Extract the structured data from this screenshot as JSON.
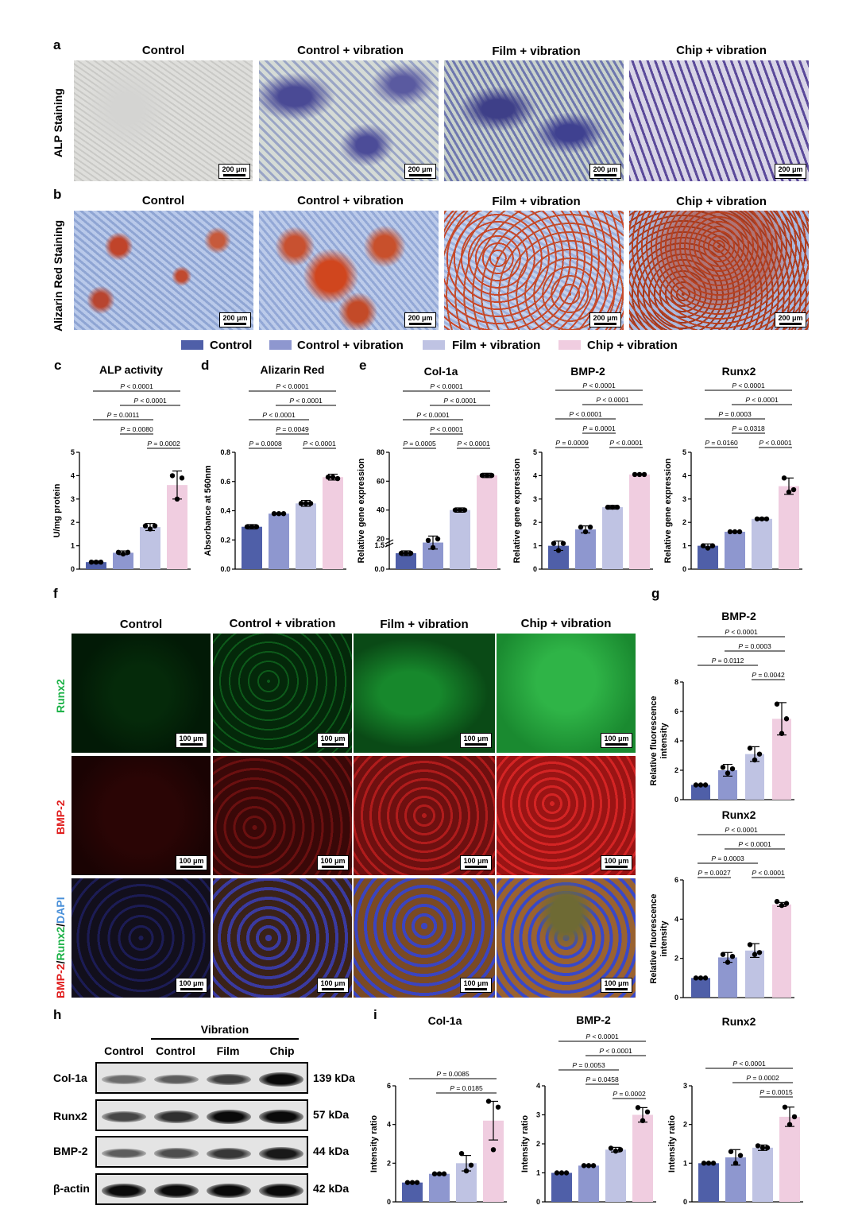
{
  "panels": {
    "a": "a",
    "b": "b",
    "c": "c",
    "d": "d",
    "e": "e",
    "f": "f",
    "g": "g",
    "h": "h",
    "i": "i"
  },
  "groups": [
    "Control",
    "Control + vibration",
    "Film + vibration",
    "Chip + vibration"
  ],
  "row_labels": {
    "alp": "ALP Staining",
    "alizarin": "Alizarin Red Staining",
    "runx2": "Runx2",
    "bmp2": "BMP-2",
    "merge_bmp2": "BMP-2",
    "merge_slash1": "/",
    "merge_runx2": "Runx2",
    "merge_slash2": "/",
    "merge_dapi": "DAPI"
  },
  "scale_200": "200 μm",
  "scale_100": "100 μm",
  "colors": {
    "control": "#4f5fa8",
    "control_vib": "#8e97cf",
    "film_vib": "#bfc3e3",
    "chip_vib": "#f0cde0",
    "runx2_green": "#1fb34a",
    "bmp2_red": "#e02020",
    "dapi_blue": "#4a90d9"
  },
  "charts": {
    "alp": {
      "title": "ALP activity",
      "ylabel": "U/mg protein",
      "yticks": [
        "0",
        "1",
        "2",
        "3",
        "4",
        "5"
      ],
      "ymax": 5,
      "values": [
        0.3,
        0.7,
        1.8,
        3.6
      ],
      "err": [
        0.05,
        0.08,
        0.15,
        0.6
      ],
      "pts": [
        [
          0.3,
          0.3,
          0.3
        ],
        [
          0.72,
          0.65,
          0.72
        ],
        [
          1.85,
          1.72,
          1.85
        ],
        [
          4.0,
          3.0,
          3.9
        ]
      ],
      "sig": [
        {
          "text": "P < 0.0001",
          "a": 0,
          "b": 3
        },
        {
          "text": "P < 0.0001",
          "a": 1,
          "b": 3
        },
        {
          "text": "P = 0.0011",
          "a": 0,
          "b": 2
        },
        {
          "text": "P = 0.0080",
          "a": 1,
          "b": 2
        },
        {
          "text": "P = 0.0002",
          "a": 2,
          "b": 3
        }
      ]
    },
    "alizarin": {
      "title": "Alizarin Red",
      "ylabel": "Absorbance at 560nm",
      "yticks": [
        "0.0",
        "0.2",
        "0.4",
        "0.6",
        "0.8"
      ],
      "ymax": 0.8,
      "values": [
        0.29,
        0.38,
        0.45,
        0.63
      ],
      "err": [
        0.015,
        0.005,
        0.02,
        0.02
      ],
      "pts": [
        [
          0.29,
          0.29,
          0.29
        ],
        [
          0.38,
          0.38,
          0.38
        ],
        [
          0.45,
          0.45,
          0.45
        ],
        [
          0.63,
          0.63,
          0.62
        ]
      ],
      "sig": [
        {
          "text": "P < 0.0001",
          "a": 0,
          "b": 3
        },
        {
          "text": "P < 0.0001",
          "a": 1,
          "b": 3
        },
        {
          "text": "P < 0.0001",
          "a": 0,
          "b": 2
        },
        {
          "text": "P = 0.0049",
          "a": 1,
          "b": 2
        },
        {
          "text": "P = 0.0008",
          "a": 0,
          "b": 1
        },
        {
          "text": "P < 0.0001",
          "a": 2,
          "b": 3
        }
      ]
    },
    "col1a": {
      "title": "Col-1a",
      "ylabel": "Relative gene expression",
      "yticks": [
        "0.0",
        "1.5",
        "20",
        "40",
        "60",
        "80"
      ],
      "broken": true,
      "values": [
        1.0,
        17.5,
        40,
        64
      ],
      "err": [
        0.15,
        4.5,
        1.5,
        1.5
      ],
      "pts": [
        [
          1.0,
          1.0,
          1.0
        ],
        [
          19,
          14,
          20
        ],
        [
          40,
          40,
          40
        ],
        [
          64,
          64,
          64
        ]
      ],
      "sig": [
        {
          "text": "P < 0.0001",
          "a": 0,
          "b": 3
        },
        {
          "text": "P < 0.0001",
          "a": 1,
          "b": 3
        },
        {
          "text": "P < 0.0001",
          "a": 0,
          "b": 2
        },
        {
          "text": "P < 0.0001",
          "a": 1,
          "b": 2
        },
        {
          "text": "P = 0.0005",
          "a": 0,
          "b": 1
        },
        {
          "text": "P < 0.0001",
          "a": 2,
          "b": 3
        }
      ]
    },
    "bmp2_gene": {
      "title": "BMP-2",
      "ylabel": "Relative gene expression",
      "yticks": [
        "0",
        "1",
        "2",
        "3",
        "4",
        "5"
      ],
      "ymax": 5,
      "values": [
        1.0,
        1.7,
        2.65,
        4.05
      ],
      "err": [
        0.2,
        0.15,
        0.08,
        0.03
      ],
      "pts": [
        [
          1.1,
          0.8,
          1.1
        ],
        [
          1.8,
          1.6,
          1.8
        ],
        [
          2.65,
          2.65,
          2.65
        ],
        [
          4.05,
          4.05,
          4.05
        ]
      ],
      "sig": [
        {
          "text": "P < 0.0001",
          "a": 0,
          "b": 3
        },
        {
          "text": "P < 0.0001",
          "a": 1,
          "b": 3
        },
        {
          "text": "P < 0.0001",
          "a": 0,
          "b": 2
        },
        {
          "text": "P = 0.0001",
          "a": 1,
          "b": 2
        },
        {
          "text": "P = 0.0009",
          "a": 0,
          "b": 1
        },
        {
          "text": "P < 0.0001",
          "a": 2,
          "b": 3
        }
      ]
    },
    "runx2_gene": {
      "title": "Runx2",
      "ylabel": "Relative gene expression",
      "yticks": [
        "0",
        "1",
        "2",
        "3",
        "4",
        "5"
      ],
      "ymax": 5,
      "values": [
        1.0,
        1.6,
        2.15,
        3.55
      ],
      "err": [
        0.08,
        0.03,
        0.05,
        0.35
      ],
      "pts": [
        [
          1.0,
          0.9,
          1.0
        ],
        [
          1.6,
          1.6,
          1.6
        ],
        [
          2.15,
          2.15,
          2.15
        ],
        [
          3.9,
          3.3,
          3.4
        ]
      ],
      "sig": [
        {
          "text": "P < 0.0001",
          "a": 0,
          "b": 3
        },
        {
          "text": "P < 0.0001",
          "a": 1,
          "b": 3
        },
        {
          "text": "P = 0.0003",
          "a": 0,
          "b": 2
        },
        {
          "text": "P = 0.0318",
          "a": 1,
          "b": 2
        },
        {
          "text": "P = 0.0160",
          "a": 0,
          "b": 1
        },
        {
          "text": "P < 0.0001",
          "a": 2,
          "b": 3
        }
      ]
    },
    "bmp2_fl": {
      "title": "BMP-2",
      "ylabel": "Relative fluorescence intensity",
      "yticks": [
        "0",
        "2",
        "4",
        "6",
        "8"
      ],
      "ymax": 8,
      "values": [
        1.0,
        2.0,
        3.1,
        5.5
      ],
      "err": [
        0.02,
        0.4,
        0.5,
        1.1
      ],
      "pts": [
        [
          1.0,
          1.0,
          1.0
        ],
        [
          2.2,
          1.8,
          2.1
        ],
        [
          3.5,
          2.7,
          3.1
        ],
        [
          6.5,
          4.5,
          5.5
        ]
      ],
      "sig": [
        {
          "text": "P < 0.0001",
          "a": 0,
          "b": 3
        },
        {
          "text": "P = 0.0003",
          "a": 1,
          "b": 3
        },
        {
          "text": "P = 0.0112",
          "a": 0,
          "b": 2
        },
        {
          "text": "P = 0.0042",
          "a": 2,
          "b": 3
        }
      ]
    },
    "runx2_fl": {
      "title": "Runx2",
      "ylabel": "Relative fluorescence intensity",
      "yticks": [
        "0",
        "2",
        "4",
        "6"
      ],
      "ymax": 6,
      "values": [
        1.0,
        2.05,
        2.4,
        4.75
      ],
      "err": [
        0.02,
        0.25,
        0.35,
        0.1
      ],
      "pts": [
        [
          1.0,
          1.0,
          1.0
        ],
        [
          2.2,
          1.8,
          2.1
        ],
        [
          2.7,
          2.2,
          2.3
        ],
        [
          4.9,
          4.7,
          4.8
        ]
      ],
      "sig": [
        {
          "text": "P < 0.0001",
          "a": 0,
          "b": 3
        },
        {
          "text": "P < 0.0001",
          "a": 1,
          "b": 3
        },
        {
          "text": "P = 0.0003",
          "a": 0,
          "b": 2
        },
        {
          "text": "P = 0.0027",
          "a": 0,
          "b": 1
        },
        {
          "text": "P < 0.0001",
          "a": 2,
          "b": 3
        }
      ]
    },
    "col1a_wb": {
      "title": "Col-1a",
      "ylabel": "Intensity ratio",
      "yticks": [
        "0",
        "2",
        "4",
        "6"
      ],
      "ymax": 6,
      "values": [
        1.0,
        1.45,
        2.0,
        4.2
      ],
      "err": [
        0.02,
        0.05,
        0.4,
        1.0
      ],
      "pts": [
        [
          1.0,
          1.0,
          1.0
        ],
        [
          1.45,
          1.45,
          1.45
        ],
        [
          2.5,
          1.6,
          1.9
        ],
        [
          5.2,
          2.7,
          4.9
        ]
      ],
      "sig": [
        {
          "text": "P = 0.0085",
          "a": 0,
          "b": 3
        },
        {
          "text": "P = 0.0185",
          "a": 1,
          "b": 3
        }
      ]
    },
    "bmp2_wb": {
      "title": "BMP-2",
      "ylabel": "Intensity ratio",
      "yticks": [
        "0",
        "1",
        "2",
        "3",
        "4"
      ],
      "ymax": 4,
      "values": [
        1.0,
        1.25,
        1.8,
        3.0
      ],
      "err": [
        0.01,
        0.02,
        0.08,
        0.25
      ],
      "pts": [
        [
          1.0,
          1.0,
          1.0
        ],
        [
          1.25,
          1.25,
          1.25
        ],
        [
          1.85,
          1.75,
          1.8
        ],
        [
          3.25,
          2.8,
          3.1
        ]
      ],
      "sig": [
        {
          "text": "P < 0.0001",
          "a": 0,
          "b": 3
        },
        {
          "text": "P < 0.0001",
          "a": 1,
          "b": 3
        },
        {
          "text": "P = 0.0053",
          "a": 0,
          "b": 2
        },
        {
          "text": "P = 0.0458",
          "a": 1,
          "b": 2
        },
        {
          "text": "P = 0.0002",
          "a": 2,
          "b": 3
        }
      ]
    },
    "runx2_wb": {
      "title": "Runx2",
      "ylabel": "Intensity ratio",
      "yticks": [
        "0",
        "1",
        "2",
        "3"
      ],
      "ymax": 3,
      "values": [
        1.0,
        1.15,
        1.4,
        2.2
      ],
      "err": [
        0.01,
        0.2,
        0.07,
        0.25
      ],
      "pts": [
        [
          1.0,
          1.0,
          1.0
        ],
        [
          1.3,
          1.0,
          1.2
        ],
        [
          1.45,
          1.4,
          1.4
        ],
        [
          2.45,
          2.0,
          2.2
        ]
      ],
      "sig": [
        {
          "text": "P < 0.0001",
          "a": 0,
          "b": 3
        },
        {
          "text": "P = 0.0002",
          "a": 1,
          "b": 3
        },
        {
          "text": "P = 0.0015",
          "a": 2,
          "b": 3
        }
      ]
    }
  },
  "western": {
    "vibration": "Vibration",
    "cols": [
      "Control",
      "Control",
      "Film",
      "Chip"
    ],
    "rows": [
      {
        "name": "Col-1a",
        "kda": "139 kDa",
        "intensity": [
          0.35,
          0.45,
          0.65,
          1.0
        ]
      },
      {
        "name": "Runx2",
        "kda": "57 kDa",
        "intensity": [
          0.6,
          0.75,
          1.0,
          1.0
        ]
      },
      {
        "name": "BMP-2",
        "kda": "44 kDa",
        "intensity": [
          0.45,
          0.55,
          0.7,
          0.9
        ]
      },
      {
        "name": "β-actin",
        "kda": "42 kDa",
        "intensity": [
          1.0,
          1.0,
          1.0,
          1.0
        ]
      }
    ]
  }
}
